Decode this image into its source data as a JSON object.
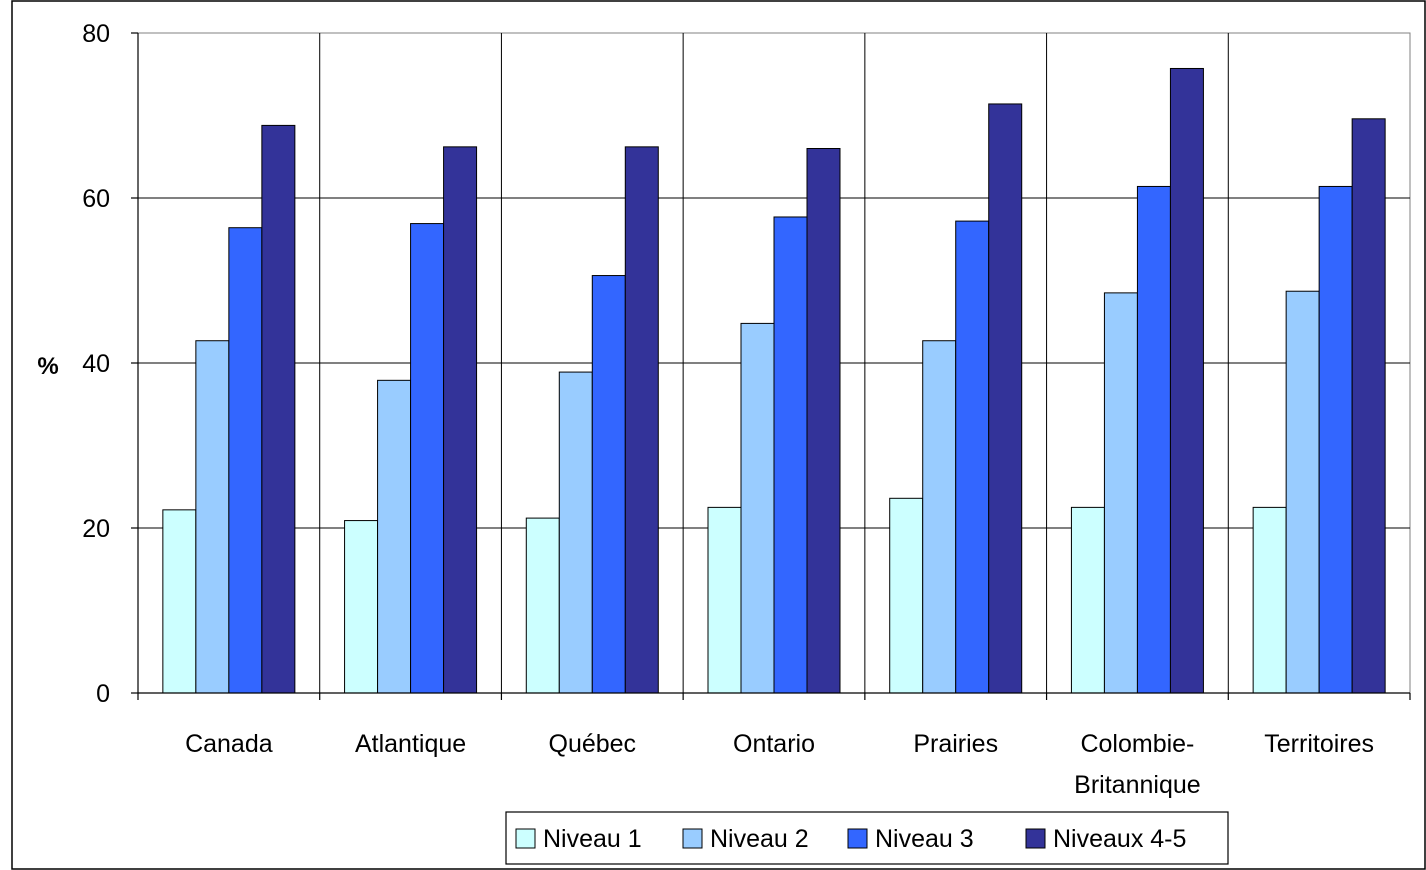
{
  "chart_data": {
    "type": "bar",
    "categories": [
      "Canada",
      "Atlantique",
      "Québec",
      "Ontario",
      "Prairies",
      "Colombie-Britannique",
      "Territoires"
    ],
    "category_lines": [
      [
        "Canada"
      ],
      [
        "Atlantique"
      ],
      [
        "Québec"
      ],
      [
        "Ontario"
      ],
      [
        "Prairies"
      ],
      [
        "Colombie-",
        "Britannique"
      ],
      [
        "Territoires"
      ]
    ],
    "series": [
      {
        "name": "Niveau 1",
        "color": "#ccffff",
        "values": [
          22.2,
          20.9,
          21.2,
          22.5,
          23.6,
          22.5,
          22.5
        ]
      },
      {
        "name": "Niveau 2",
        "color": "#99ccff",
        "values": [
          42.7,
          37.9,
          38.9,
          44.8,
          42.7,
          48.5,
          48.7
        ]
      },
      {
        "name": "Niveau 3",
        "color": "#3366ff",
        "values": [
          56.4,
          56.9,
          50.6,
          57.7,
          57.2,
          61.4,
          61.4
        ]
      },
      {
        "name": "Niveaux 4-5",
        "color": "#333399",
        "values": [
          68.8,
          66.2,
          66.2,
          66.0,
          71.4,
          75.7,
          69.6
        ]
      }
    ],
    "title": "",
    "xlabel": "",
    "ylabel": "%",
    "ylim": [
      0,
      80
    ],
    "yticks": [
      0,
      20,
      40,
      60,
      80
    ],
    "grid": true,
    "legend_position": "bottom"
  }
}
